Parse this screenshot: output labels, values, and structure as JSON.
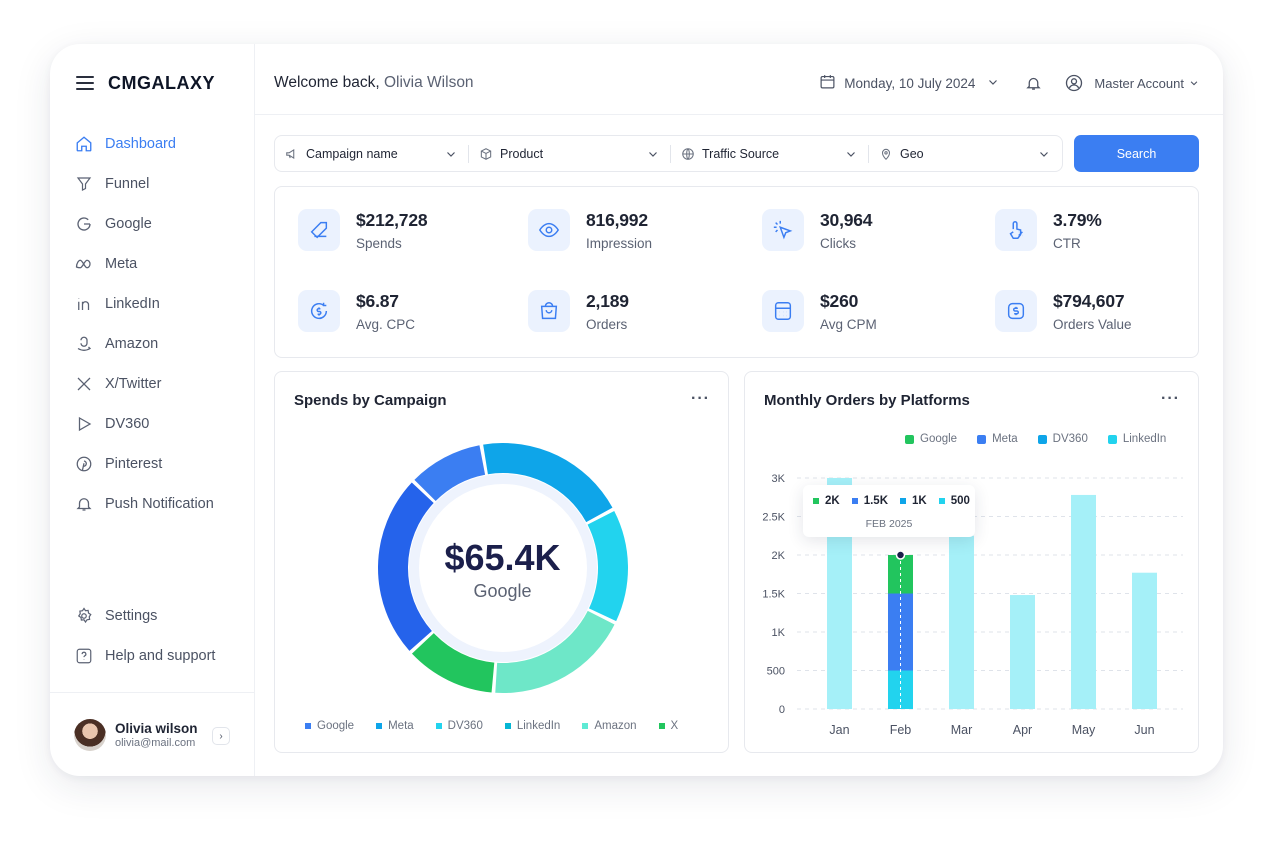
{
  "app": {
    "brand": "CMGALAXY"
  },
  "sidebar": {
    "items": [
      {
        "label": "Dashboard",
        "icon": "home-icon",
        "active": true
      },
      {
        "label": "Funnel",
        "icon": "funnel-icon"
      },
      {
        "label": "Google",
        "icon": "google-icon"
      },
      {
        "label": "Meta",
        "icon": "meta-icon"
      },
      {
        "label": "LinkedIn",
        "icon": "linkedin-icon"
      },
      {
        "label": "Amazon",
        "icon": "amazon-icon"
      },
      {
        "label": "X/Twitter",
        "icon": "x-twitter-icon"
      },
      {
        "label": "DV360",
        "icon": "dv360-icon"
      },
      {
        "label": "Pinterest",
        "icon": "pinterest-icon"
      },
      {
        "label": "Push Notification",
        "icon": "bell-icon"
      }
    ],
    "bottom": [
      {
        "label": "Settings",
        "icon": "gear-icon"
      },
      {
        "label": "Help and support",
        "icon": "help-icon"
      }
    ],
    "user": {
      "name": "Olivia wilson",
      "email": "olivia@mail.com"
    }
  },
  "header": {
    "welcome_prefix": "Welcome back,",
    "welcome_name": "Olivia Wilson",
    "date": "Monday, 10 July 2024",
    "account": "Master Account"
  },
  "filters": {
    "campaign": "Campaign name",
    "product": "Product",
    "traffic": "Traffic Source",
    "geo": "Geo",
    "search": "Search"
  },
  "kpis": [
    {
      "value": "$212,728",
      "label": "Spends",
      "icon": "tag-icon"
    },
    {
      "value": "816,992",
      "label": "Impression",
      "icon": "eye-icon"
    },
    {
      "value": "30,964",
      "label": "Clicks",
      "icon": "cursor-click-icon"
    },
    {
      "value": "3.79%",
      "label": "CTR",
      "icon": "touch-percent-icon"
    },
    {
      "value": "$6.87",
      "label": "Avg. CPC",
      "icon": "coin-cycle-icon"
    },
    {
      "value": "2,189",
      "label": "Orders",
      "icon": "bag-icon"
    },
    {
      "value": "$260",
      "label": "Avg CPM",
      "icon": "calculator-icon"
    },
    {
      "value": "$794,607",
      "label": "Orders Value",
      "icon": "dollar-icon"
    }
  ],
  "spends_card": {
    "title": "Spends by Campaign",
    "center_value": "$65.4K",
    "center_label": "Google"
  },
  "orders_card": {
    "title": "Monthly Orders by Platforms",
    "tooltip": {
      "values": [
        "2K",
        "1.5K",
        "1K",
        "500"
      ],
      "date": "FEB 2025"
    }
  },
  "colors": {
    "accent": "#3b7ef2",
    "google": "#2f6fed",
    "meta": "#0ea5e9",
    "dv360": "#22d3ee",
    "linkedin": "#06b6d4",
    "amazon": "#5eead4",
    "x": "#22c55e"
  },
  "chart_data": [
    {
      "type": "pie",
      "title": "Spends by Campaign",
      "categories": [
        "Google",
        "Meta",
        "DV360",
        "LinkedIn",
        "Amazon",
        "X"
      ],
      "values": [
        20,
        15,
        19,
        12,
        24,
        10
      ],
      "legend_position": "bottom",
      "donut": true
    },
    {
      "type": "bar",
      "title": "Monthly Orders by Platforms",
      "categories": [
        "Jan",
        "Feb",
        "Mar",
        "Apr",
        "May",
        "Jun"
      ],
      "legend": [
        "Google",
        "Meta",
        "DV360",
        "LinkedIn"
      ],
      "yticks": [
        "0",
        "500",
        "1K",
        "1.5K",
        "2K",
        "2.5K",
        "3K"
      ],
      "ylim": [
        0,
        3000
      ],
      "totals": [
        3000,
        2000,
        2250,
        1480,
        2780,
        1770
      ],
      "feb_breakdown": [
        {
          "name": "Google",
          "from": 1500,
          "to": 2000,
          "color": "#22c55e"
        },
        {
          "name": "Meta",
          "from": 500,
          "to": 1500,
          "color": "#3b7ef2"
        },
        {
          "name": "DV360",
          "from": 0,
          "to": 500,
          "color": "#22d3ee"
        }
      ],
      "grid": true,
      "legend_position": "top-right"
    }
  ]
}
